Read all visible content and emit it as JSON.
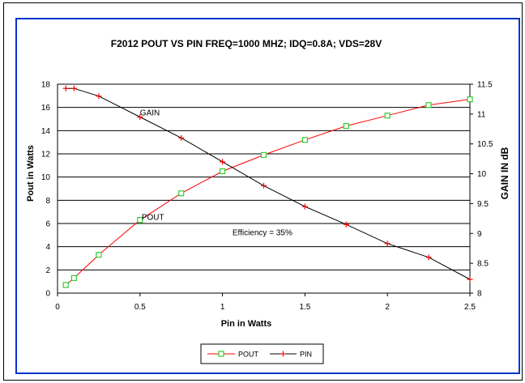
{
  "chart_data": {
    "type": "line",
    "title": "F2012 POUT VS PIN FREQ=1000 MHZ;  IDQ=0.8A; VDS=28V",
    "xlabel": "Pin in Watts",
    "ylabel": "Pout in Watts",
    "y2label": "GAIN IN dB",
    "xlim": [
      0,
      2.5
    ],
    "ylim": [
      0,
      18
    ],
    "y2lim": [
      8,
      11.5
    ],
    "xticks": [
      "0",
      "0.5",
      "1",
      "1.5",
      "2",
      "2.5"
    ],
    "yticks": [
      "0",
      "2",
      "4",
      "6",
      "8",
      "10",
      "12",
      "14",
      "16",
      "18"
    ],
    "y2ticks": [
      "8",
      "8.5",
      "9",
      "9.5",
      "10",
      "10.5",
      "11",
      "11.5"
    ],
    "grid": "horizontal",
    "legend_position": "bottom-center",
    "series": [
      {
        "name": "POUT",
        "axis": "left",
        "color": "#ff0000",
        "marker": "square",
        "x": [
          0.05,
          0.1,
          0.25,
          0.5,
          0.75,
          1.0,
          1.25,
          1.5,
          1.75,
          2.0,
          2.25,
          2.5
        ],
        "values": [
          0.7,
          1.3,
          3.3,
          6.3,
          8.6,
          10.5,
          11.9,
          13.2,
          14.4,
          15.3,
          16.2,
          16.7
        ]
      },
      {
        "name": "PIN",
        "axis": "right",
        "color": "#000000",
        "marker": "cross",
        "x": [
          0.05,
          0.1,
          0.25,
          0.5,
          0.75,
          1.0,
          1.25,
          1.5,
          1.75,
          2.0,
          2.25,
          2.5
        ],
        "values": [
          11.43,
          11.43,
          11.3,
          10.95,
          10.6,
          10.2,
          9.8,
          9.45,
          9.15,
          8.83,
          8.6,
          8.23
        ]
      }
    ],
    "annotations": [
      {
        "text": "GAIN",
        "x": 0.5,
        "y": 15.3
      },
      {
        "text": "POUT",
        "x": 0.51,
        "y": 6.3
      },
      {
        "text": "Efficiency = 35%",
        "x": 1.06,
        "y": 5.0
      }
    ]
  }
}
